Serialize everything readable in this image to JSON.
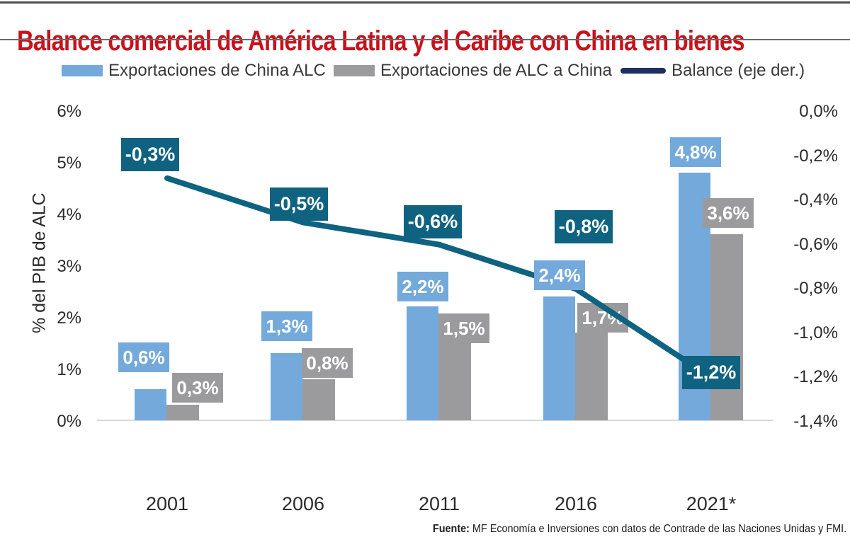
{
  "title": {
    "text": "Balance comercial de América Latina y el Caribe con China en bienes",
    "color": "#C9111B"
  },
  "legend": {
    "items": [
      {
        "label": "Exportaciones de China ALC",
        "swatch": "bar",
        "color": "#74A9DB"
      },
      {
        "label": "Exportaciones de ALC a China",
        "swatch": "bar",
        "color": "#9B9B9E"
      },
      {
        "label": "Balance (eje der.)",
        "swatch": "line",
        "color": "#1F3060"
      }
    ]
  },
  "chart_data": {
    "type": "bar+line",
    "categories": [
      "2001",
      "2006",
      "2011",
      "2016",
      "2021*"
    ],
    "series": [
      {
        "name": "Exportaciones de China ALC",
        "type": "bar",
        "axis": "left",
        "color": "#74A9DB",
        "values": [
          0.6,
          1.3,
          2.2,
          2.4,
          4.8
        ],
        "data_labels": [
          "0,6%",
          "1,3%",
          "2,2%",
          "2,4%",
          "4,8%"
        ]
      },
      {
        "name": "Exportaciones de ALC a China",
        "type": "bar",
        "axis": "left",
        "color": "#9B9B9E",
        "values": [
          0.3,
          0.8,
          1.5,
          1.7,
          3.6
        ],
        "data_labels": [
          "0,3%",
          "0,8%",
          "1,5%",
          "1,7%",
          "3,6%"
        ]
      },
      {
        "name": "Balance (eje der.)",
        "type": "line",
        "axis": "right",
        "color": "#0F6381",
        "values": [
          -0.3,
          -0.5,
          -0.6,
          -0.8,
          -1.2
        ],
        "data_labels": [
          "-0,3%",
          "-0,5%",
          "-0,6%",
          "-0,8%",
          "-1,2%"
        ]
      }
    ],
    "left_axis": {
      "title": "% del PIB de ALC",
      "min": 0,
      "max": 6,
      "ticks": [
        "6%",
        "5%",
        "4%",
        "3%",
        "2%",
        "1%",
        "0%"
      ]
    },
    "right_axis": {
      "min": -1.4,
      "max": 0,
      "ticks": [
        "0,0%",
        "-0,2%",
        "-0,4%",
        "-0,6%",
        "-0,8%",
        "-1,0%",
        "-1,2%",
        "-1,4%"
      ]
    },
    "gridlines": "baseline-only",
    "legend_position": "top"
  },
  "source": {
    "prefix": "Fuente:",
    "text": " MF Economía e Inversiones con datos de Contrade de las Naciones Unidas y FMI."
  }
}
